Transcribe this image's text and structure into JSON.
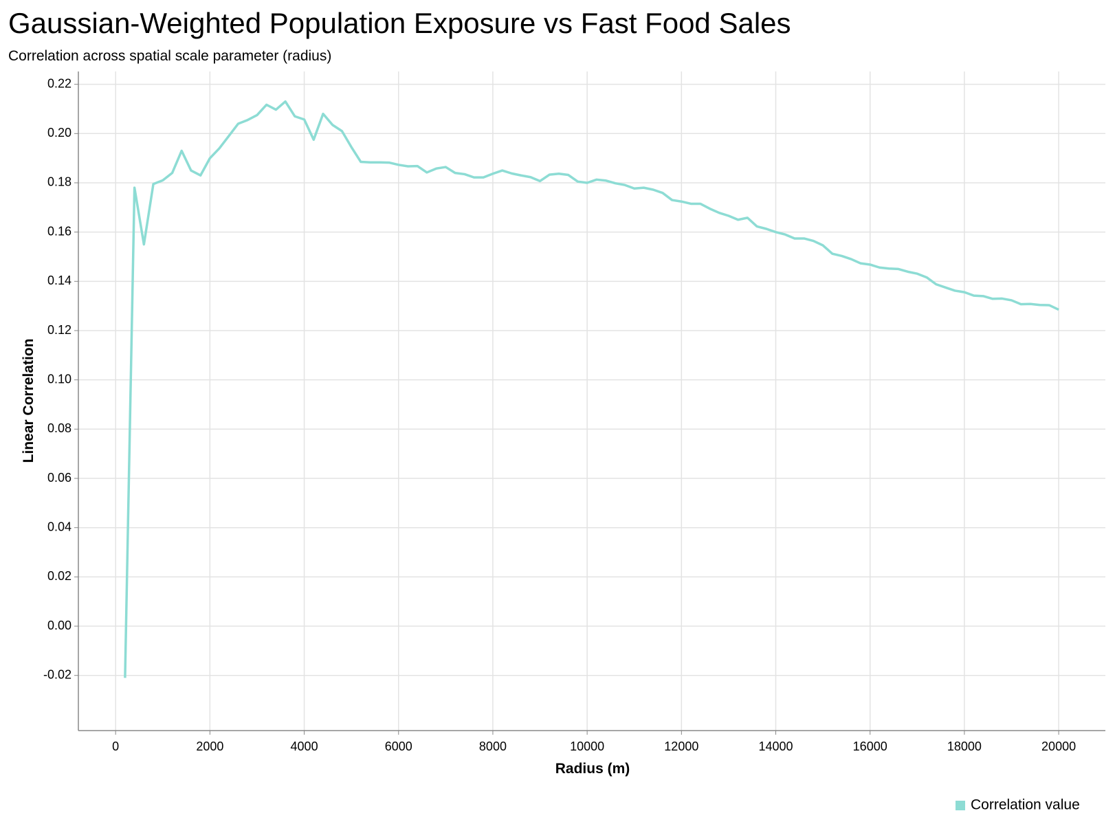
{
  "chart_data": {
    "type": "line",
    "title": "Gaussian-Weighted Population Exposure vs Fast Food Sales",
    "subtitle": "Correlation across spatial scale parameter (radius)",
    "x_label": "Radius (m)",
    "y_label": "Linear Correlation",
    "x": [
      200,
      400,
      600,
      800,
      1000,
      1200,
      1400,
      1600,
      1800,
      2000,
      2200,
      2400,
      2600,
      2800,
      3000,
      3200,
      3400,
      3600,
      3800,
      4000,
      4200,
      4400,
      4600,
      4800,
      5000,
      5200,
      5400,
      5600,
      5800,
      6000,
      6200,
      6400,
      6600,
      6800,
      7000,
      7200,
      7400,
      7600,
      7800,
      8000,
      8200,
      8400,
      8600,
      8800,
      9000,
      9200,
      9400,
      9600,
      9800,
      10000,
      10200,
      10400,
      10600,
      10800,
      11000,
      11200,
      11400,
      11600,
      11800,
      12000,
      12200,
      12400,
      12600,
      12800,
      13000,
      13200,
      13400,
      13600,
      13800,
      14000,
      14200,
      14400,
      14600,
      14800,
      15000,
      15200,
      15400,
      15600,
      15800,
      16000,
      16200,
      16400,
      16600,
      16800,
      17000,
      17200,
      17400,
      17600,
      17800,
      18000,
      18200,
      18400,
      18600,
      18800,
      19000,
      19200,
      19400,
      19600,
      19800,
      20000
    ],
    "series": [
      {
        "name": "Correlation value",
        "color": "#8ddcd4",
        "values": [
          -0.021,
          0.178,
          0.155,
          0.1795,
          0.181,
          0.184,
          0.193,
          0.185,
          0.183,
          0.19,
          0.194,
          0.199,
          0.204,
          0.2055,
          0.2075,
          0.2117,
          0.2097,
          0.213,
          0.207,
          0.2057,
          0.1975,
          0.208,
          0.2035,
          0.201,
          0.1945,
          0.1885,
          0.1883,
          0.1883,
          0.1882,
          0.1873,
          0.1867,
          0.1868,
          0.1842,
          0.1858,
          0.1864,
          0.184,
          0.1835,
          0.1822,
          0.1822,
          0.1837,
          0.185,
          0.1838,
          0.183,
          0.1823,
          0.1807,
          0.1833,
          0.1837,
          0.1832,
          0.1805,
          0.18,
          0.1813,
          0.1809,
          0.1798,
          0.1791,
          0.1777,
          0.178,
          0.1772,
          0.1759,
          0.173,
          0.1724,
          0.1715,
          0.1715,
          0.1695,
          0.1678,
          0.1666,
          0.165,
          0.1658,
          0.1623,
          0.1613,
          0.16,
          0.159,
          0.1574,
          0.1574,
          0.1564,
          0.1546,
          0.1512,
          0.1503,
          0.149,
          0.1473,
          0.1468,
          0.1456,
          0.1452,
          0.145,
          0.1439,
          0.1431,
          0.1416,
          0.1388,
          0.1375,
          0.1362,
          0.1356,
          0.1342,
          0.134,
          0.1329,
          0.133,
          0.1323,
          0.1307,
          0.1308,
          0.1304,
          0.1303,
          0.1285
        ]
      }
    ],
    "xlim": [
      -790,
      20990
    ],
    "ylim": [
      -0.0424,
      0.2252
    ],
    "xticks": [
      0,
      2000,
      4000,
      6000,
      8000,
      10000,
      12000,
      14000,
      16000,
      18000,
      20000
    ],
    "yticks": [
      {
        "value": -0.02,
        "label": "-0.02"
      },
      {
        "value": 0,
        "label": "0.00"
      },
      {
        "value": 0.02,
        "label": "0.02"
      },
      {
        "value": 0.04,
        "label": "0.04"
      },
      {
        "value": 0.06,
        "label": "0.06"
      },
      {
        "value": 0.08,
        "label": "0.08"
      },
      {
        "value": 0.1,
        "label": "0.10"
      },
      {
        "value": 0.12,
        "label": "0.12"
      },
      {
        "value": 0.14,
        "label": "0.14"
      },
      {
        "value": 0.16,
        "label": "0.16"
      },
      {
        "value": 0.18,
        "label": "0.18"
      },
      {
        "value": 0.2,
        "label": "0.20"
      },
      {
        "value": 0.22,
        "label": "0.22"
      }
    ],
    "grid": true,
    "legend": "bottom-right"
  }
}
